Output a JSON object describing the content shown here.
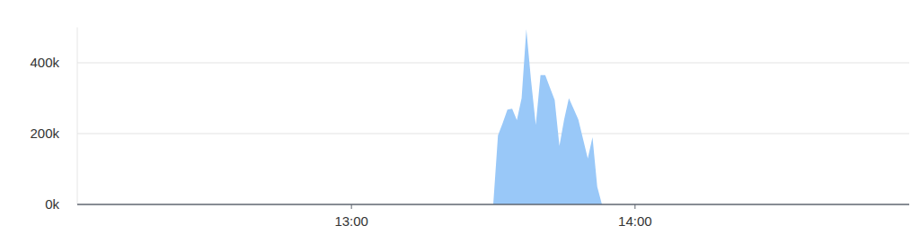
{
  "chart_data": {
    "type": "area",
    "x": [
      810,
      811,
      812,
      813,
      814,
      815,
      816,
      817,
      818,
      819,
      820,
      821,
      822,
      823,
      824,
      825,
      826,
      827,
      828,
      829,
      830,
      831,
      832,
      833
    ],
    "values": [
      0,
      195000,
      230000,
      268000,
      270000,
      238000,
      300000,
      495000,
      350000,
      225000,
      365000,
      365000,
      330000,
      295000,
      165000,
      240000,
      300000,
      270000,
      240000,
      185000,
      130000,
      190000,
      50000,
      0
    ],
    "color": "#99c8f8",
    "xlim": [
      722,
      898
    ],
    "xticks": [
      {
        "value": 780,
        "label": "13:00"
      },
      {
        "value": 840,
        "label": "14:00"
      }
    ],
    "ylim": [
      0,
      500000
    ],
    "yticks": [
      {
        "value": 0,
        "label": "0k"
      },
      {
        "value": 200000,
        "label": "200k"
      },
      {
        "value": 400000,
        "label": "400k"
      }
    ],
    "grid": true
  }
}
